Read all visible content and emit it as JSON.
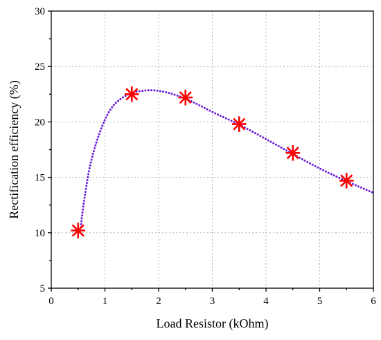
{
  "chart_data": {
    "type": "scatter",
    "title": "",
    "xlabel": "Load Resistor (kOhm)",
    "ylabel": "Rectification efficiency (%)",
    "xlim": [
      0,
      6
    ],
    "ylim": [
      5,
      30
    ],
    "x_ticks": [
      "0",
      "1",
      "2",
      "3",
      "4",
      "5",
      "6"
    ],
    "y_ticks": [
      "5",
      "10",
      "15",
      "20",
      "25",
      "30"
    ],
    "grid": true,
    "series": [
      {
        "type": "scatter",
        "marker": "asterisk",
        "color": "#ff0000",
        "x": [
          0.5,
          1.5,
          2.5,
          3.5,
          4.5,
          5.5
        ],
        "y": [
          10.2,
          22.5,
          22.2,
          19.8,
          17.2,
          14.7
        ]
      },
      {
        "type": "line",
        "style": "dotted",
        "color": "#6a1fd8",
        "x": [
          0.55,
          0.6,
          0.7,
          0.8,
          0.9,
          1.0,
          1.1,
          1.2,
          1.3,
          1.4,
          1.5,
          1.6,
          1.7,
          1.8,
          1.9,
          2.0,
          2.2,
          2.5,
          2.8,
          3.0,
          3.5,
          4.0,
          4.5,
          5.0,
          5.5,
          6.0
        ],
        "y": [
          10.5,
          12.5,
          15.5,
          17.5,
          19.0,
          20.2,
          21.1,
          21.7,
          22.1,
          22.4,
          22.6,
          22.75,
          22.8,
          22.85,
          22.85,
          22.8,
          22.6,
          22.1,
          21.4,
          20.9,
          19.75,
          18.45,
          17.1,
          15.8,
          14.65,
          13.6
        ]
      }
    ]
  }
}
